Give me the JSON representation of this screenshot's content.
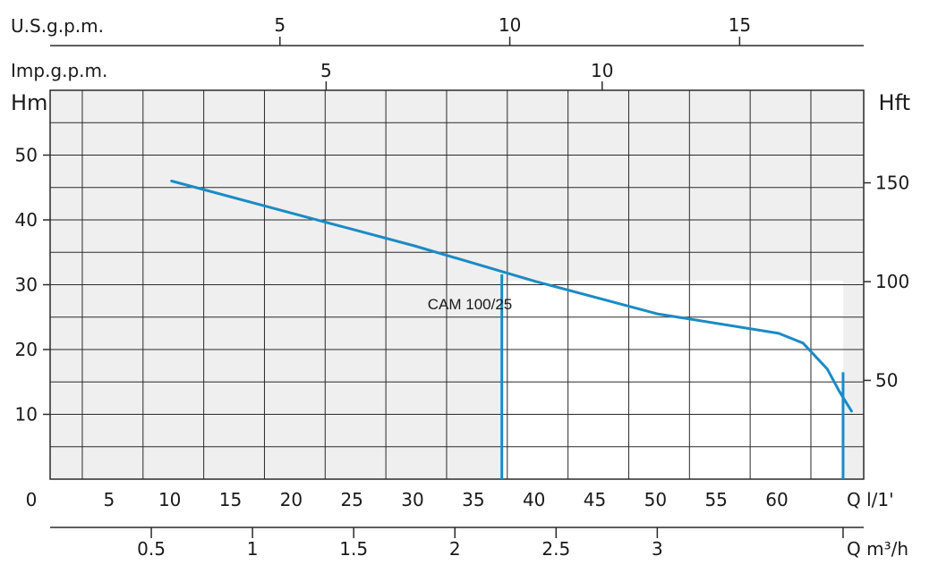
{
  "chart_data": {
    "type": "line",
    "title": "",
    "colors": {
      "curve": "#1a8bc6",
      "grid": "#2a2a2a",
      "plot_bg": "#efefef",
      "operating_area": "#ffffff"
    },
    "axes": {
      "usgpm": {
        "label": "U.S.g.p.m.",
        "ticks": [
          5,
          10,
          15
        ]
      },
      "impgpm": {
        "label": "Imp.g.p.m.",
        "ticks": [
          5,
          10
        ]
      },
      "left_head": {
        "label": "Hm",
        "range": [
          0,
          60
        ],
        "ticks": [
          10,
          20,
          30,
          40,
          50
        ]
      },
      "right_head": {
        "label": "Hft",
        "ticks": [
          50,
          100,
          150
        ]
      },
      "flow_lmin": {
        "label": "Q  l/1'",
        "range": [
          0,
          67
        ],
        "origin_label": "0",
        "ticks": [
          5,
          10,
          15,
          20,
          25,
          30,
          35,
          40,
          45,
          50,
          55,
          60
        ]
      },
      "flow_m3h": {
        "label": "Q  m³/h",
        "ticks": [
          0.5,
          1,
          1.5,
          2,
          2.5,
          3
        ]
      }
    },
    "grid": true,
    "series": [
      {
        "name": "CAM 100/25",
        "x": [
          10,
          20,
          30,
          40,
          50,
          60,
          62,
          64,
          65,
          66
        ],
        "y": [
          46,
          41,
          36,
          30.5,
          25.5,
          22.5,
          21,
          17,
          13.5,
          10.5
        ]
      }
    ],
    "operating_range": {
      "x_min": 37.2,
      "x_max": 65.3
    }
  }
}
